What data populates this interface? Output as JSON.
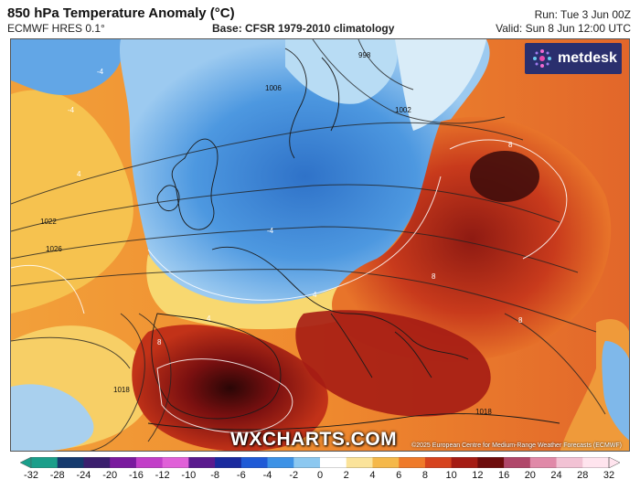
{
  "header": {
    "title": "850 hPa Temperature Anomaly (°C)",
    "model": "ECMWF HRES 0.1°",
    "base": "Base: CFSR 1979-2010 climatology",
    "run": "Run: Tue 3 Jun 00Z",
    "valid": "Valid: Sun 8 Jun 12:00 UTC"
  },
  "logo": {
    "text": "metdesk"
  },
  "watermark": "WXCHARTS.COM",
  "copyright": "©2025 European Centre for Medium-Range Weather Forecasts (ECMWF)",
  "isobar_labels": [
    "998",
    "1002",
    "1006",
    "1022",
    "1026",
    "1018",
    "1018"
  ],
  "anomaly_labels": [
    "-4",
    "-4",
    "-4",
    "8",
    "8",
    "8",
    "8",
    "4",
    "4",
    "4"
  ],
  "colorbar": {
    "ticks": [
      "-32",
      "-28",
      "-24",
      "-20",
      "-16",
      "-12",
      "-10",
      "-8",
      "-6",
      "-4",
      "-2",
      "0",
      "2",
      "4",
      "6",
      "8",
      "10",
      "12",
      "16",
      "20",
      "24",
      "28",
      "32"
    ],
    "colors": [
      "#1a9e8a",
      "#153a6e",
      "#3b1f6e",
      "#7a1a9e",
      "#c23ec8",
      "#e060d8",
      "#5a1a8e",
      "#1a2a9e",
      "#1f5ad6",
      "#3d92e6",
      "#8cc8f0",
      "#ffffff",
      "#fbe39a",
      "#f5b84a",
      "#ef7a2a",
      "#d6431e",
      "#a51c14",
      "#6e0c0c",
      "#b0476a",
      "#e089a8",
      "#f2c2d4",
      "#ffe4ee"
    ]
  }
}
